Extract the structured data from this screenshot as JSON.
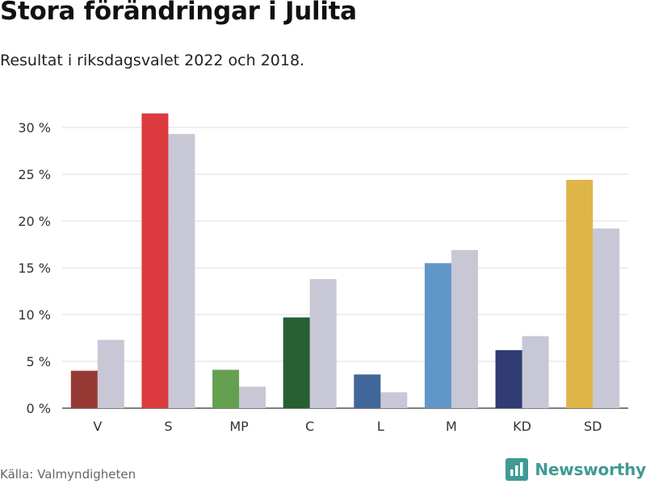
{
  "title": "Stora förändringar i Julita",
  "subtitle": "Resultat i riksdagsvalet 2022 och 2018.",
  "source": "Källa: Valmyndigheten",
  "brand": {
    "name": "Newsworthy",
    "icon": "bar-chart-logo-icon",
    "color": "#3f9a95"
  },
  "chart_data": {
    "type": "bar",
    "categories": [
      "V",
      "S",
      "MP",
      "C",
      "L",
      "M",
      "KD",
      "SD"
    ],
    "series": [
      {
        "values": [
          4.0,
          31.5,
          4.1,
          9.7,
          3.6,
          15.5,
          6.2,
          24.4
        ]
      },
      {
        "values": [
          7.3,
          29.3,
          2.3,
          13.8,
          1.7,
          16.9,
          7.7,
          19.2
        ]
      }
    ],
    "colors_2022": [
      "#973a36",
      "#dc3a3f",
      "#64a04f",
      "#275f33",
      "#41669a",
      "#6197c8",
      "#313b74",
      "#deb548"
    ],
    "color_2018": "#c8c7d5",
    "yticks": [
      "0 %",
      "5 %",
      "10 %",
      "15 %",
      "20 %",
      "25 %",
      "30 %"
    ],
    "ytick_values": [
      0,
      5,
      10,
      15,
      20,
      25,
      30
    ],
    "ylim": [
      0,
      32
    ],
    "grid": true,
    "legend": "none"
  }
}
